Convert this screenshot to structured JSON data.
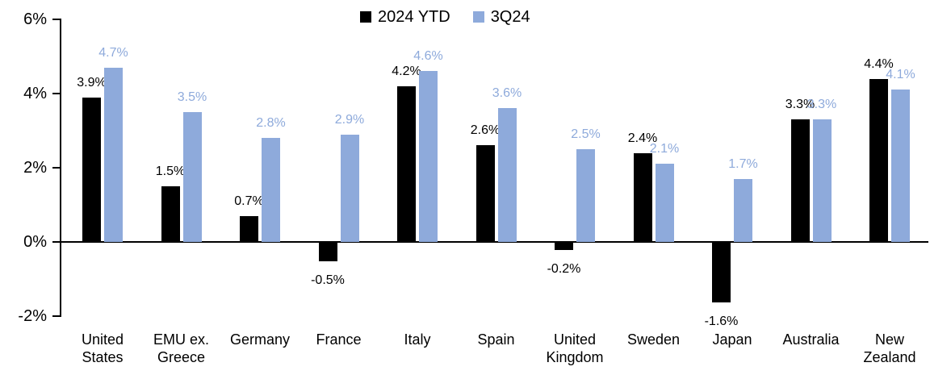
{
  "legend": {
    "items": [
      {
        "label": "2024 YTD",
        "color": "#000000"
      },
      {
        "label": "3Q24",
        "color": "#8EAADB"
      }
    ]
  },
  "chart_data": {
    "type": "bar",
    "categories": [
      "United States",
      "EMU ex. Greece",
      "Germany",
      "France",
      "Italy",
      "Spain",
      "United Kingdom",
      "Sweden",
      "Japan",
      "Australia",
      "New Zealand"
    ],
    "category_label_lines": [
      [
        "United",
        "States"
      ],
      [
        "EMU ex.",
        "Greece"
      ],
      [
        "Germany"
      ],
      [
        "France"
      ],
      [
        "Italy"
      ],
      [
        "Spain"
      ],
      [
        "United",
        "Kingdom"
      ],
      [
        "Sweden"
      ],
      [
        "Japan"
      ],
      [
        "Australia"
      ],
      [
        "New",
        "Zealand"
      ]
    ],
    "series": [
      {
        "name": "2024 YTD",
        "color": "#000000",
        "values": [
          3.9,
          1.5,
          0.7,
          -0.5,
          4.2,
          2.6,
          -0.2,
          2.4,
          -1.6,
          3.3,
          4.4
        ],
        "labels": [
          "3.9%",
          "1.5%",
          "0.7%",
          "-0.5%",
          "4.2%",
          "2.6%",
          "-0.2%",
          "2.4%",
          "-1.6%",
          "3.3%",
          "4.4%"
        ]
      },
      {
        "name": "3Q24",
        "color": "#8EAADB",
        "values": [
          4.7,
          3.5,
          2.8,
          2.9,
          4.6,
          3.6,
          2.5,
          2.1,
          1.7,
          3.3,
          4.1
        ],
        "labels": [
          "4.7%",
          "3.5%",
          "2.8%",
          "2.9%",
          "4.6%",
          "3.6%",
          "2.5%",
          "2.1%",
          "1.7%",
          "3.3%",
          "4.1%"
        ]
      }
    ],
    "y_axis": {
      "ylim": [
        -2,
        6
      ],
      "ticks": [
        {
          "value": 6,
          "label": "6%"
        },
        {
          "value": 4,
          "label": "4%"
        },
        {
          "value": 2,
          "label": "2%"
        },
        {
          "value": 0,
          "label": "0%"
        },
        {
          "value": -2,
          "label": "-2%"
        }
      ]
    },
    "grid": false,
    "legend_position": "top-center",
    "data_label_format": "0.0%"
  }
}
